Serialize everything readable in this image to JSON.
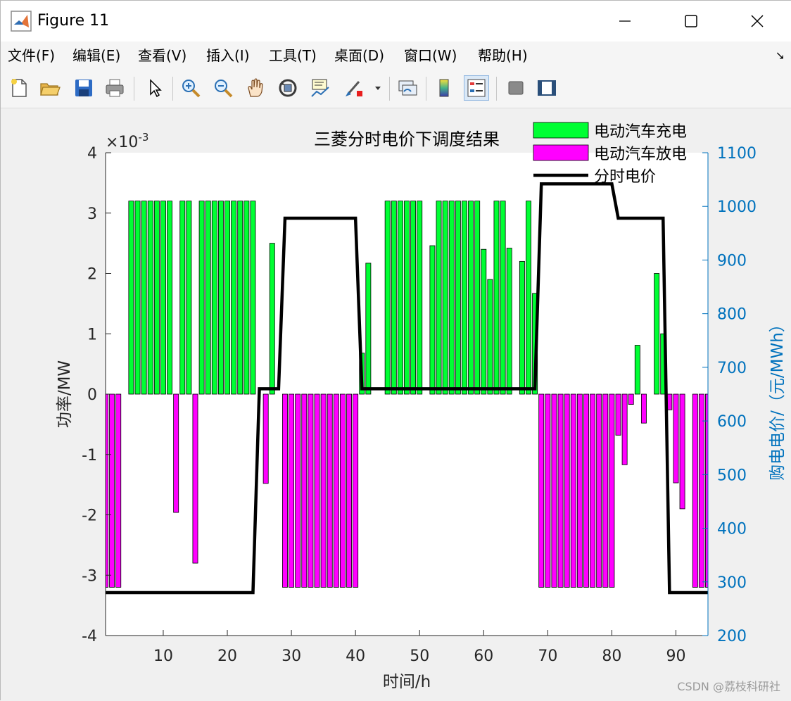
{
  "window": {
    "title": "Figure 11",
    "minimize_glyph": "—",
    "maximize_glyph": "☐",
    "close_glyph": "✕"
  },
  "menubar": {
    "items": [
      "文件(F)",
      "编辑(E)",
      "查看(V)",
      "插入(I)",
      "工具(T)",
      "桌面(D)",
      "窗口(W)",
      "帮助(H)"
    ],
    "overflow_glyph": "↘"
  },
  "toolbar": {
    "icons": [
      "new-figure-icon",
      "open-file-icon",
      "save-icon",
      "print-icon",
      "pointer-icon",
      "zoom-in-icon",
      "zoom-out-icon",
      "pan-icon",
      "rotate-3d-icon",
      "data-cursor-icon",
      "brush-icon",
      "link-plot-icon",
      "colorbar-icon",
      "legend-icon",
      "hide-plot-tools-icon",
      "show-plot-tools-icon"
    ]
  },
  "watermark": "CSDN @荔枝科研社",
  "colors": {
    "charge": "#00ff33",
    "discharge": "#ff00ff",
    "price_line": "#000000",
    "right_axis": "#0072bd"
  },
  "chart_data": {
    "type": "bar",
    "title": "三菱分时电价下调度结果",
    "xlabel": "时间/h",
    "ylabel": "功率/MW",
    "ylabel_right": "购电电价/（元/MWh）",
    "y_exponent_label": "×10",
    "y_exponent_power": "-3",
    "xlim": [
      1,
      95
    ],
    "ylim": [
      -0.004,
      0.004
    ],
    "ylim_right": [
      200,
      1100
    ],
    "xticks": [
      10,
      20,
      30,
      40,
      50,
      60,
      70,
      80,
      90
    ],
    "yticks": [
      -4,
      -3,
      -2,
      -1,
      0,
      1,
      2,
      3,
      4
    ],
    "yticks_right": [
      200,
      300,
      400,
      500,
      600,
      700,
      800,
      900,
      1000,
      1100
    ],
    "legend": [
      "电动汽车充电",
      "电动汽车放电",
      "分时电价"
    ],
    "legend_position": "top-right",
    "grid": false,
    "charge": [
      [
        5,
        3.2
      ],
      [
        6,
        3.2
      ],
      [
        7,
        3.2
      ],
      [
        8,
        3.2
      ],
      [
        9,
        3.2
      ],
      [
        10,
        3.2
      ],
      [
        11,
        3.2
      ],
      [
        13,
        3.2
      ],
      [
        14,
        3.2
      ],
      [
        16,
        3.2
      ],
      [
        17,
        3.2
      ],
      [
        18,
        3.2
      ],
      [
        19,
        3.2
      ],
      [
        20,
        3.2
      ],
      [
        21,
        3.2
      ],
      [
        22,
        3.2
      ],
      [
        23,
        3.2
      ],
      [
        24,
        3.2
      ],
      [
        27,
        2.5
      ],
      [
        41,
        0.68
      ],
      [
        42,
        2.17
      ],
      [
        45,
        3.2
      ],
      [
        46,
        3.2
      ],
      [
        47,
        3.2
      ],
      [
        48,
        3.2
      ],
      [
        49,
        3.2
      ],
      [
        50,
        3.2
      ],
      [
        52,
        2.46
      ],
      [
        53,
        3.2
      ],
      [
        54,
        3.2
      ],
      [
        55,
        3.2
      ],
      [
        56,
        3.2
      ],
      [
        57,
        3.2
      ],
      [
        58,
        3.2
      ],
      [
        59,
        3.2
      ],
      [
        60,
        2.4
      ],
      [
        61,
        1.9
      ],
      [
        62,
        3.2
      ],
      [
        63,
        3.2
      ],
      [
        64,
        2.42
      ],
      [
        66,
        2.2
      ],
      [
        67,
        3.2
      ],
      [
        68,
        1.67
      ],
      [
        84,
        0.81
      ],
      [
        87,
        2.0
      ],
      [
        88,
        1.0
      ]
    ],
    "discharge": [
      [
        1,
        -3.2
      ],
      [
        2,
        -3.2
      ],
      [
        3,
        -3.2
      ],
      [
        12,
        -1.96
      ],
      [
        15,
        -2.8
      ],
      [
        26,
        -1.48
      ],
      [
        29,
        -3.2
      ],
      [
        30,
        -3.2
      ],
      [
        31,
        -3.2
      ],
      [
        32,
        -3.2
      ],
      [
        33,
        -3.2
      ],
      [
        34,
        -3.2
      ],
      [
        35,
        -3.2
      ],
      [
        36,
        -3.2
      ],
      [
        37,
        -3.2
      ],
      [
        38,
        -3.2
      ],
      [
        39,
        -3.2
      ],
      [
        40,
        -3.2
      ],
      [
        69,
        -3.2
      ],
      [
        70,
        -3.2
      ],
      [
        71,
        -3.2
      ],
      [
        72,
        -3.2
      ],
      [
        73,
        -3.2
      ],
      [
        74,
        -3.2
      ],
      [
        75,
        -3.2
      ],
      [
        76,
        -3.2
      ],
      [
        77,
        -3.2
      ],
      [
        78,
        -3.2
      ],
      [
        79,
        -3.2
      ],
      [
        80,
        -3.2
      ],
      [
        81,
        -0.68
      ],
      [
        82,
        -1.17
      ],
      [
        83,
        -0.17
      ],
      [
        85,
        -0.48
      ],
      [
        89,
        -0.26
      ],
      [
        90,
        -1.47
      ],
      [
        91,
        -1.9
      ],
      [
        93,
        -3.2
      ],
      [
        94,
        -3.2
      ],
      [
        95,
        -3.2
      ]
    ],
    "price": [
      [
        1,
        280
      ],
      [
        24,
        280
      ],
      [
        25,
        660
      ],
      [
        28,
        660
      ],
      [
        29,
        978
      ],
      [
        40,
        978
      ],
      [
        41,
        660
      ],
      [
        68,
        660
      ],
      [
        69,
        1042
      ],
      [
        80,
        1042
      ],
      [
        81,
        978
      ],
      [
        88,
        978
      ],
      [
        89,
        280
      ],
      [
        95,
        280
      ]
    ]
  }
}
